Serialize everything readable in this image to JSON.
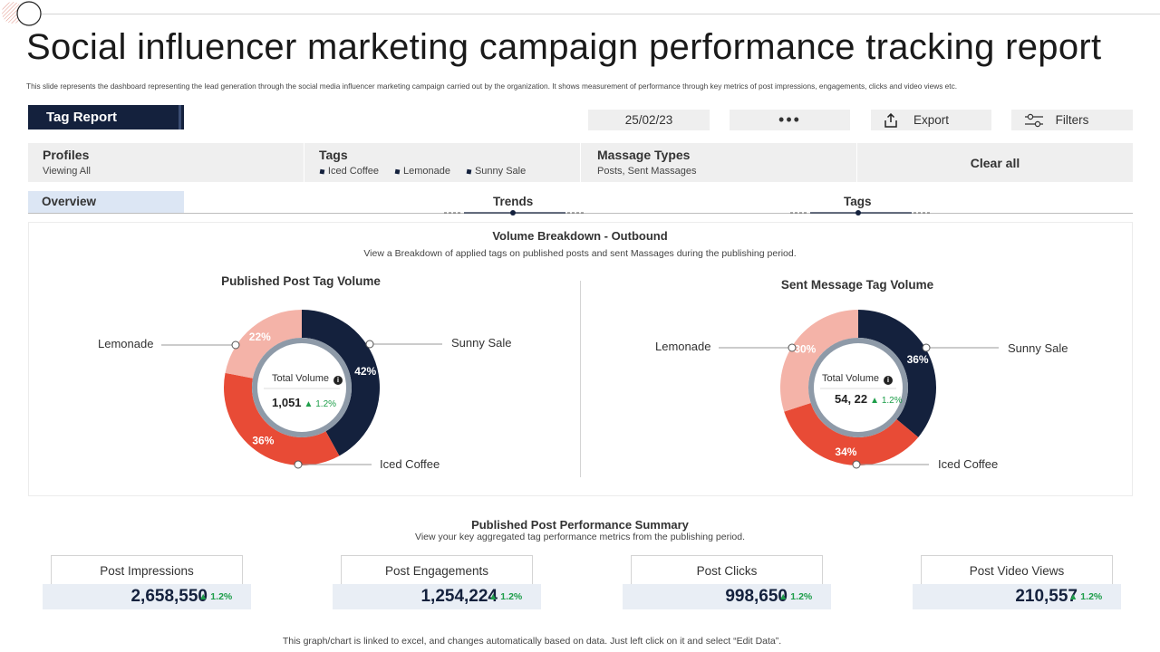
{
  "title": "Social influencer marketing campaign performance tracking report",
  "subtitle": "This slide represents the dashboard representing the lead generation through the social media influencer marketing campaign carried out by the organization.  It shows measurement of performance through key metrics of post impressions, engagements, clicks and video views etc.",
  "toolbar": {
    "tag_report": "Tag Report",
    "date": "25/02/23",
    "more": "•••",
    "export": "Export",
    "filters": "Filters"
  },
  "filters": {
    "profiles": {
      "label": "Profiles",
      "value": "Viewing All"
    },
    "tags": {
      "label": "Tags",
      "items": [
        "Iced Coffee",
        "Lemonade",
        "Sunny Sale"
      ]
    },
    "message_types": {
      "label": "Massage Types",
      "value": "Posts, Sent Massages"
    },
    "clear_all": "Clear all"
  },
  "nav": {
    "overview": "Overview",
    "trends": "Trends",
    "tags": "Tags"
  },
  "panel": {
    "title": "Volume Breakdown - Outbound",
    "subtitle": "View a Breakdown of applied tags on published posts and sent Massages during the publishing period."
  },
  "center": {
    "label": "Total Volume",
    "info_glyph": "i",
    "left_value": "1,051",
    "left_change": "▲ 1.2%",
    "right_value": "54, 22",
    "right_change": "▲ 1.2%"
  },
  "colors": {
    "navy": "#14213d",
    "red": "#e84b36",
    "salmon": "#f4b3a8",
    "green": "#1e9e4a"
  },
  "chart_data": [
    {
      "type": "pie",
      "title": "Published Post Tag Volume",
      "categories": [
        "Sunny Sale",
        "Iced Coffee",
        "Lemonade"
      ],
      "values": [
        42,
        36,
        22
      ],
      "labels": [
        "42%",
        "36%",
        "22%"
      ],
      "colors": [
        "#14213d",
        "#e84b36",
        "#f4b3a8"
      ]
    },
    {
      "type": "pie",
      "title": "Sent Message Tag Volume",
      "categories": [
        "Sunny Sale",
        "Iced Coffee",
        "Lemonade"
      ],
      "values": [
        36,
        34,
        30
      ],
      "labels": [
        "36%",
        "34%",
        "30%"
      ],
      "colors": [
        "#14213d",
        "#e84b36",
        "#f4b3a8"
      ]
    }
  ],
  "summary": {
    "title": "Published Post Performance Summary",
    "subtitle": "View your key aggregated tag performance metrics from the publishing period.",
    "kpis": [
      {
        "label": "Post Impressions",
        "value": "2,658,550",
        "change": "▲ 1.2%"
      },
      {
        "label": "Post Engagements",
        "value": "1,254,224",
        "change": "▲ 1.2%"
      },
      {
        "label": "Post Clicks",
        "value": "998,650",
        "change": "▲ 1.2%"
      },
      {
        "label": "Post Video Views",
        "value": "210,557",
        "change": "▲ 1.2%"
      }
    ]
  },
  "footer": "This graph/chart is linked to excel, and changes automatically based on data. Just left click on it and select “Edit Data”."
}
